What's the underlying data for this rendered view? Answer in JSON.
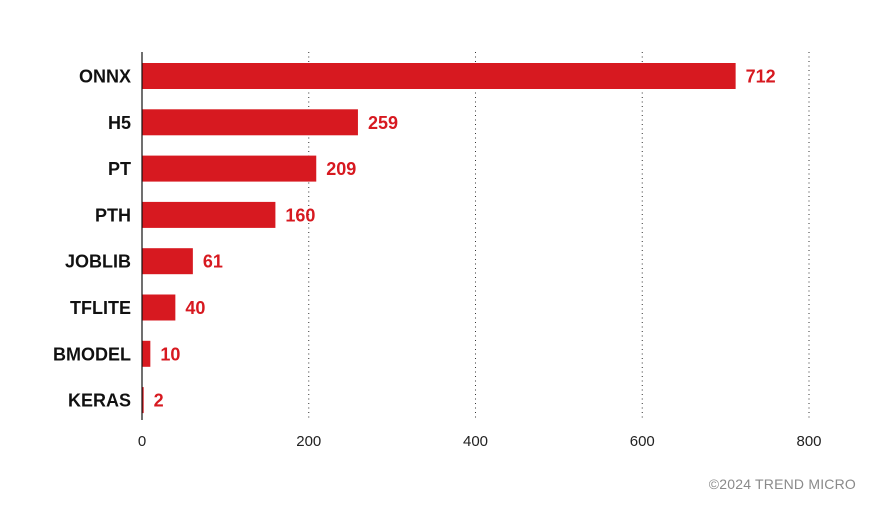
{
  "chart_data": {
    "type": "bar",
    "orientation": "horizontal",
    "categories": [
      "ONNX",
      "H5",
      "PT",
      "PTH",
      "JOBLIB",
      "TFLITE",
      "BMODEL",
      "KERAS"
    ],
    "values": [
      712,
      259,
      209,
      160,
      61,
      40,
      10,
      2
    ],
    "xlim": [
      0,
      800
    ],
    "x_ticks": [
      0,
      200,
      400,
      600,
      800
    ],
    "grid": "vertical dotted",
    "legend": "none",
    "data_labels": true,
    "colors": {
      "bar": "#d71920",
      "value_label": "#d71920",
      "text": "#111111"
    }
  },
  "footer": {
    "credit": "©2024 TREND MICRO"
  }
}
